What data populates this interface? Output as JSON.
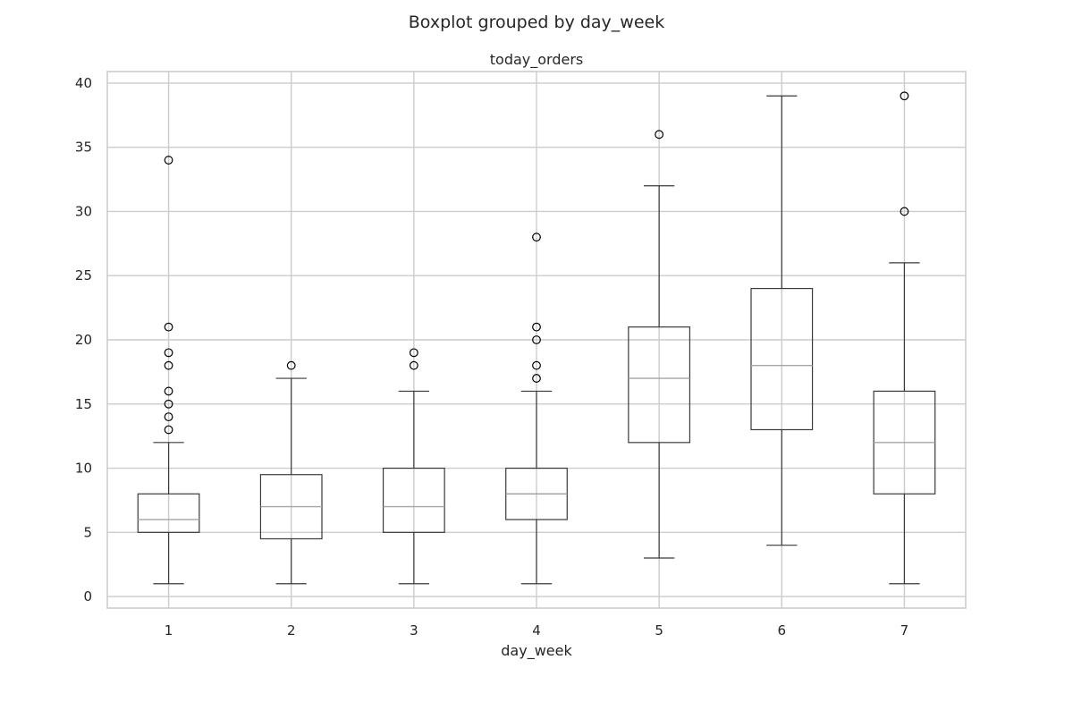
{
  "figure": {
    "suptitle": "Boxplot grouped by day_week"
  },
  "chart_data": {
    "type": "boxplot",
    "title": "today_orders",
    "xlabel": "day_week",
    "ylabel": "",
    "categories": [
      "1",
      "2",
      "3",
      "4",
      "5",
      "6",
      "7"
    ],
    "y_ticks": [
      "0",
      "5",
      "10",
      "15",
      "20",
      "25",
      "30",
      "35",
      "40"
    ],
    "ylim": [
      -0.9,
      40.9
    ],
    "grid": true,
    "colors": {
      "box": "#3a3a3a",
      "whisker": "#3a3a3a",
      "median": "#a5a5a5",
      "grid": "#cccccc",
      "spine": "#cccccc",
      "flier": "#000000"
    },
    "boxes": [
      {
        "category": "1",
        "whislo": 1,
        "q1": 5,
        "med": 6,
        "q3": 8,
        "whishi": 12,
        "fliers": [
          13,
          14,
          15,
          16,
          18,
          19,
          21,
          34
        ]
      },
      {
        "category": "2",
        "whislo": 1,
        "q1": 4.5,
        "med": 7,
        "q3": 9.5,
        "whishi": 17,
        "fliers": [
          18
        ]
      },
      {
        "category": "3",
        "whislo": 1,
        "q1": 5,
        "med": 7,
        "q3": 10,
        "whishi": 16,
        "fliers": [
          18,
          19
        ]
      },
      {
        "category": "4",
        "whislo": 1,
        "q1": 6,
        "med": 8,
        "q3": 10,
        "whishi": 16,
        "fliers": [
          17,
          18,
          20,
          21,
          28
        ]
      },
      {
        "category": "5",
        "whislo": 3,
        "q1": 12,
        "med": 17,
        "q3": 21,
        "whishi": 32,
        "fliers": [
          36
        ]
      },
      {
        "category": "6",
        "whislo": 4,
        "q1": 13,
        "med": 18,
        "q3": 24,
        "whishi": 39,
        "fliers": []
      },
      {
        "category": "7",
        "whislo": 1,
        "q1": 8,
        "med": 12,
        "q3": 16,
        "whishi": 26,
        "fliers": [
          30,
          39
        ]
      }
    ]
  }
}
